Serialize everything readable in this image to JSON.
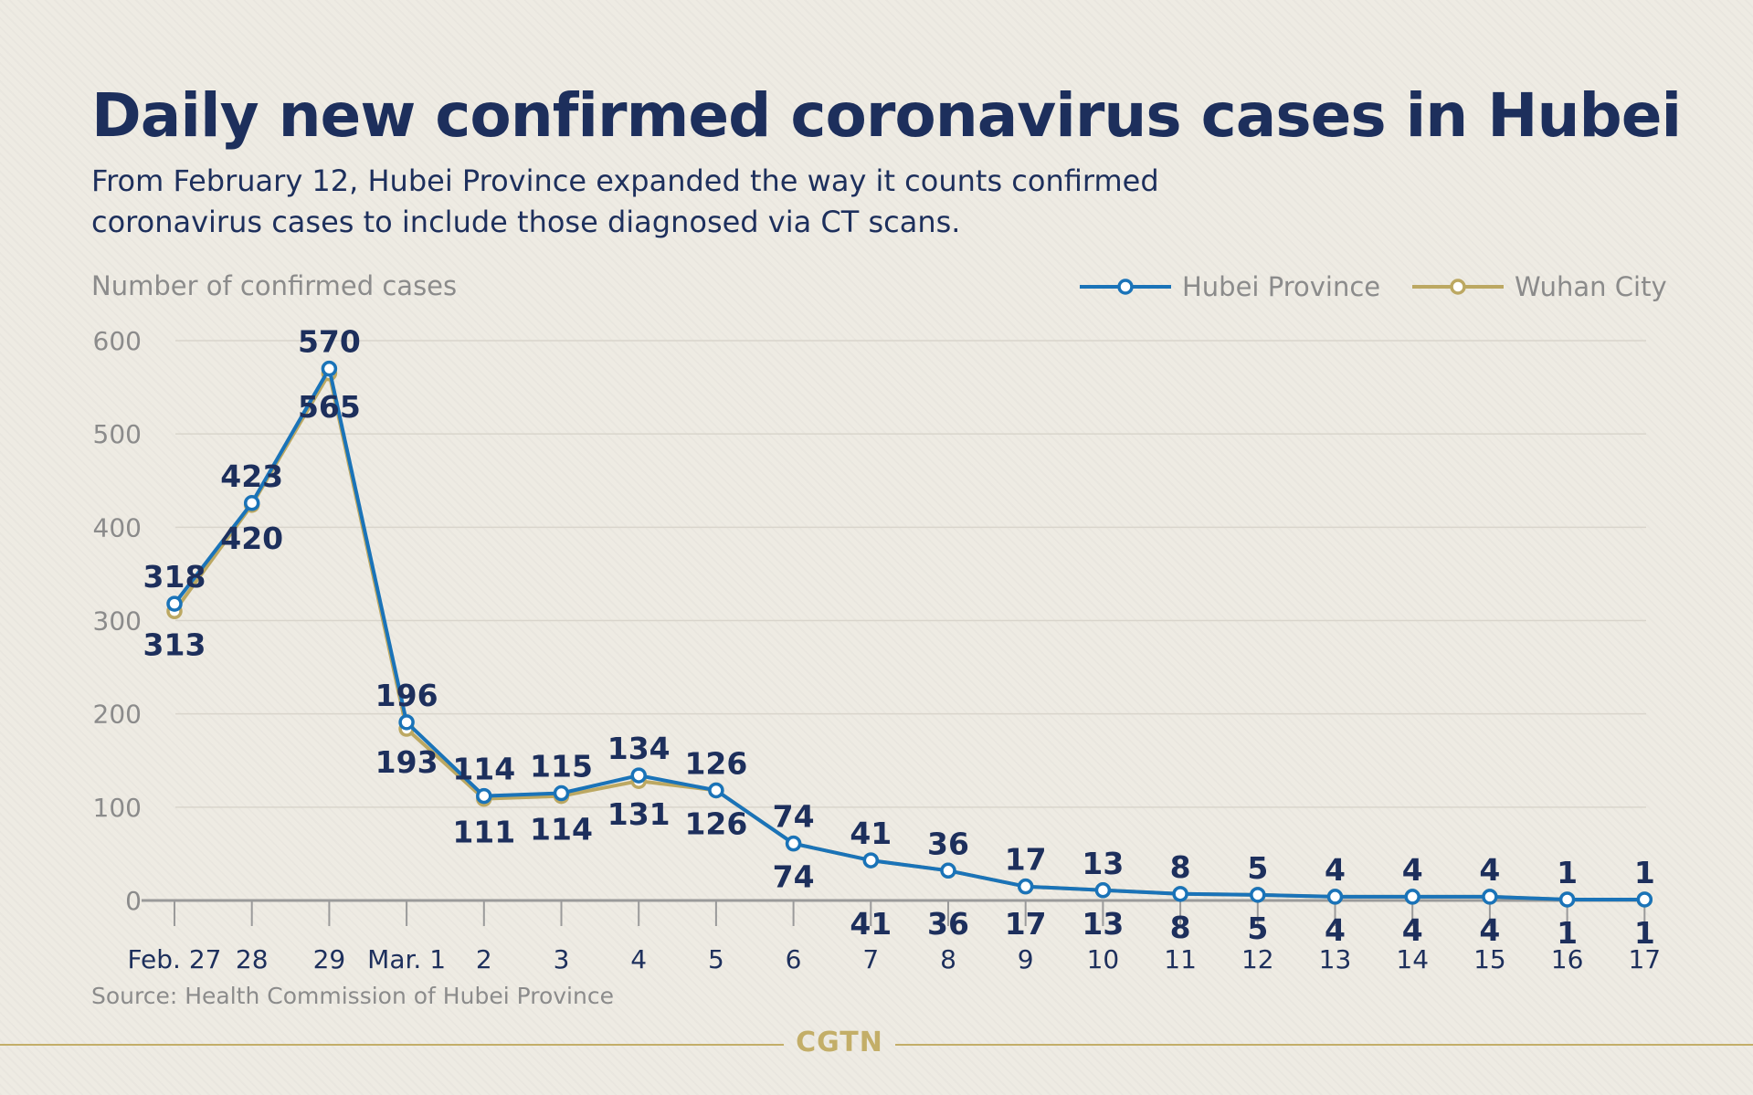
{
  "title": "Daily new confirmed coronavirus cases in Hubei",
  "subtitle": "From February 12, Hubei Province expanded the way it counts confirmed coronavirus cases to include those diagnosed via CT scans.",
  "source": "Source: Health Commission of Hubei Province",
  "brand": "CGTN",
  "colors": {
    "hubei": "#1a73b8",
    "wuhan": "#bca862",
    "title": "#1d2f5c",
    "gridline": "#d9d5cc",
    "axis": "#9a9a9a",
    "muted_text": "#8b8b8b",
    "brand": "#c3ae68"
  },
  "chart_data": {
    "type": "line",
    "title": "Daily new confirmed coronavirus cases in Hubei",
    "ylabel": "Number of confirmed cases",
    "xlabel": "",
    "categories": [
      "Feb. 27",
      "28",
      "29",
      "Mar. 1",
      "2",
      "3",
      "4",
      "5",
      "6",
      "7",
      "8",
      "9",
      "10",
      "11",
      "12",
      "13",
      "14",
      "15",
      "16",
      "17"
    ],
    "series": [
      {
        "name": "Hubei Province",
        "color": "#1a73b8",
        "values": [
          318,
          423,
          570,
          196,
          114,
          115,
          134,
          126,
          74,
          41,
          36,
          17,
          13,
          8,
          5,
          4,
          4,
          4,
          1,
          1
        ],
        "plot_values": [
          318,
          426,
          570,
          191,
          112,
          115,
          134,
          118,
          61,
          43,
          32,
          15,
          11,
          7,
          6,
          4,
          4,
          4,
          1,
          1
        ]
      },
      {
        "name": "Wuhan City",
        "color": "#bca862",
        "values": [
          313,
          420,
          565,
          193,
          111,
          114,
          131,
          126,
          74,
          41,
          36,
          17,
          13,
          8,
          5,
          4,
          4,
          4,
          1,
          1
        ],
        "plot_values": [
          310,
          424,
          565,
          184,
          109,
          112,
          128,
          118,
          61,
          43,
          32,
          15,
          11,
          7,
          6,
          4,
          4,
          4,
          1,
          1
        ]
      }
    ],
    "ylim": [
      0,
      600
    ],
    "yticks": [
      "0",
      "100",
      "200",
      "300",
      "400",
      "500",
      "600"
    ],
    "grid": true,
    "legend_position": "top-right"
  }
}
